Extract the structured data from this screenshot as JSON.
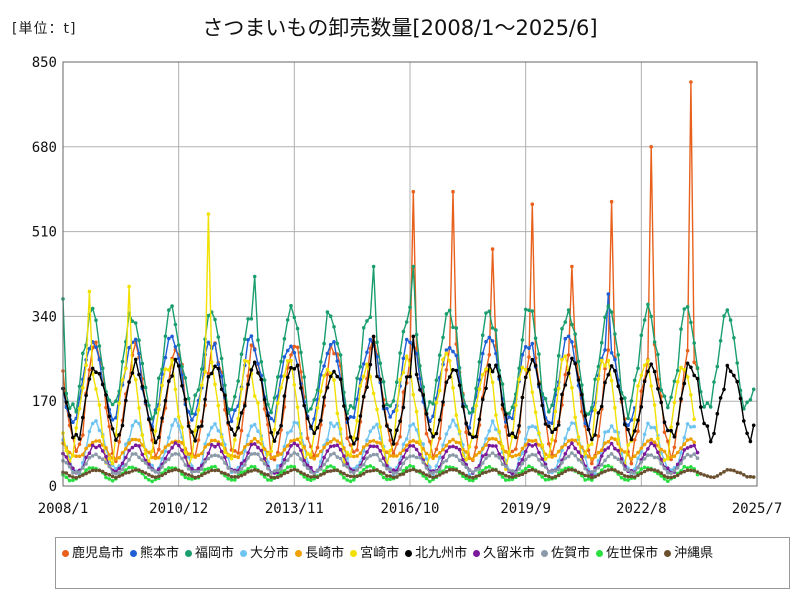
{
  "unit_label": "[単位：t]",
  "title": "さつまいもの卸売数量[2008/1～2025/6]",
  "chart_data": {
    "type": "line",
    "ylim": [
      0,
      850
    ],
    "yticks": [
      0,
      170,
      340,
      510,
      680,
      850
    ],
    "x_start": "2008/1",
    "x_end": "2025/7",
    "xticks": [
      "2008/1",
      "2010/12",
      "2013/11",
      "2016/10",
      "2019/9",
      "2022/8",
      "2025/7"
    ],
    "grid": true,
    "legend_position": "bottom",
    "series": [
      {
        "name": "鹿児島市",
        "color": "#e8601c",
        "start": "2008/1",
        "end": "2024/1",
        "base": 170,
        "amp": 120,
        "peak_month": 11,
        "peaks": {
          "2016/11": 590,
          "2017/11": 590,
          "2018/11": 475,
          "2019/11": 565,
          "2020/11": 440,
          "2021/11": 570,
          "2022/11": 680,
          "2023/11": 810
        }
      },
      {
        "name": "熊本市",
        "color": "#1f5fd6",
        "start": "2008/1",
        "end": "2022/6",
        "base": 210,
        "amp": 90,
        "peak_month": 10,
        "peaks": {
          "2021/10": 385
        }
      },
      {
        "name": "福岡市",
        "color": "#1a9e6e",
        "start": "2008/1",
        "end": "2025/6",
        "base": 250,
        "amp": 110,
        "peak_month": 10,
        "peaks": {
          "2008/1": 375,
          "2012/11": 420,
          "2015/11": 440,
          "2016/11": 440
        }
      },
      {
        "name": "大分市",
        "color": "#6ec3f0",
        "start": "2008/1",
        "end": "2023/12",
        "base": 75,
        "amp": 55,
        "peak_month": 11,
        "peaks": {}
      },
      {
        "name": "長崎市",
        "color": "#f0a000",
        "start": "2008/1",
        "end": "2023/12",
        "base": 75,
        "amp": 20,
        "peak_month": 11,
        "peaks": {}
      },
      {
        "name": "宮崎市",
        "color": "#f2e000",
        "start": "2008/1",
        "end": "2023/12",
        "base": 150,
        "amp": 110,
        "peak_month": 9,
        "peaks": {
          "2008/9": 390,
          "2009/9": 400,
          "2011/9": 545
        }
      },
      {
        "name": "北九州市",
        "color": "#000000",
        "start": "2008/1",
        "end": "2025/6",
        "base": 170,
        "amp": 80,
        "peak_month": 11,
        "peaks": {
          "2015/11": 300,
          "2016/11": 300
        }
      },
      {
        "name": "久留米市",
        "color": "#7a1a9a",
        "start": "2008/1",
        "end": "2024/1",
        "base": 55,
        "amp": 30,
        "peak_month": 11,
        "peaks": {}
      },
      {
        "name": "佐賀市",
        "color": "#8a9aa8",
        "start": "2008/1",
        "end": "2024/1",
        "base": 45,
        "amp": 20,
        "peak_month": 11,
        "peaks": {}
      },
      {
        "name": "佐世保市",
        "color": "#28e040",
        "start": "2008/1",
        "end": "2024/1",
        "base": 25,
        "amp": 15,
        "peak_month": 10,
        "peaks": {}
      },
      {
        "name": "沖縄県",
        "color": "#6b5030",
        "start": "2008/1",
        "end": "2025/6",
        "base": 25,
        "amp": 8,
        "peak_month": 11,
        "peaks": {}
      }
    ]
  }
}
